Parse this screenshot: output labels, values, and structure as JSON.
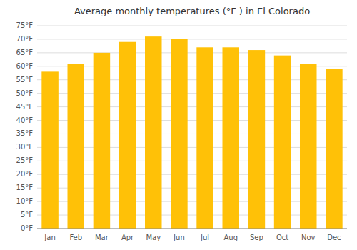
{
  "chart_data": {
    "type": "bar",
    "title": "Average monthly temperatures (°F ) in El Colorado",
    "categories": [
      "Jan",
      "Feb",
      "Mar",
      "Apr",
      "May",
      "Jun",
      "Jul",
      "Aug",
      "Sep",
      "Oct",
      "Nov",
      "Dec"
    ],
    "values": [
      58,
      61,
      65,
      69,
      71,
      70,
      67,
      67,
      66,
      64,
      61,
      59
    ],
    "color": "#FFC107",
    "ylim": [
      0,
      75
    ],
    "yticks": [
      {
        "value": 0,
        "label": "0°F"
      },
      {
        "value": 5,
        "label": "5°F"
      },
      {
        "value": 10,
        "label": "10°F"
      },
      {
        "value": 15,
        "label": "15°F"
      },
      {
        "value": 20,
        "label": "20°F"
      },
      {
        "value": 25,
        "label": "25°F"
      },
      {
        "value": 30,
        "label": "30°F"
      },
      {
        "value": 35,
        "label": "35°F"
      },
      {
        "value": 40,
        "label": "40°F"
      },
      {
        "value": 45,
        "label": "45°F"
      },
      {
        "value": 50,
        "label": "50°F"
      },
      {
        "value": 55,
        "label": "55°F"
      },
      {
        "value": 60,
        "label": "60°F"
      },
      {
        "value": 65,
        "label": "65°F"
      },
      {
        "value": 70,
        "label": "70°F"
      },
      {
        "value": 75,
        "label": "75°F"
      }
    ],
    "grid": true
  }
}
